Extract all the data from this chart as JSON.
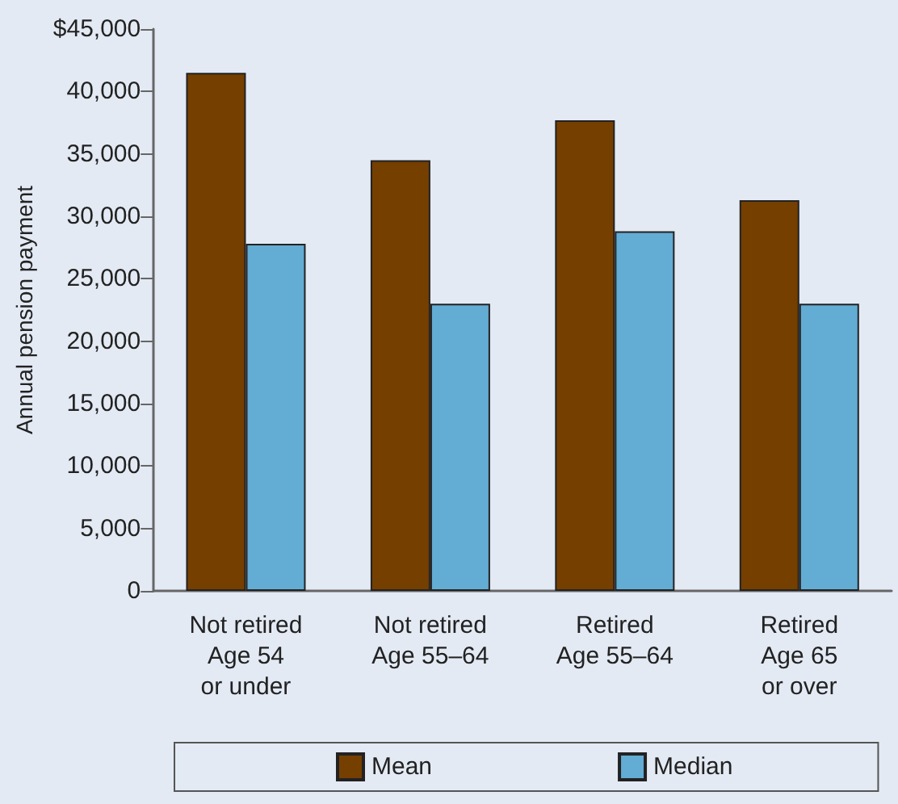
{
  "chart_data": {
    "type": "bar",
    "ylabel": "Annual pension payment",
    "categories": [
      "Not retired\nAge 54\nor under",
      "Not retired\nAge 55–64",
      "Retired\nAge 55–64",
      "Retired\nAge 65\nor over"
    ],
    "series": [
      {
        "name": "Mean",
        "color": "#753f00",
        "values": [
          41500,
          34500,
          37700,
          31300
        ]
      },
      {
        "name": "Median",
        "color": "#63acd4",
        "values": [
          27800,
          23000,
          28800,
          23000
        ]
      }
    ],
    "ylim": [
      0,
      45000
    ],
    "yticks": [
      {
        "value": 0,
        "label": "0"
      },
      {
        "value": 5000,
        "label": "5,000"
      },
      {
        "value": 10000,
        "label": "10,000"
      },
      {
        "value": 15000,
        "label": "15,000"
      },
      {
        "value": 20000,
        "label": "20,000"
      },
      {
        "value": 25000,
        "label": "25,000"
      },
      {
        "value": 30000,
        "label": "30,000"
      },
      {
        "value": 35000,
        "label": "35,000"
      },
      {
        "value": 40000,
        "label": "40,000"
      },
      {
        "value": 45000,
        "label": "$45,000"
      }
    ],
    "grid": false,
    "legend": "bottom"
  }
}
